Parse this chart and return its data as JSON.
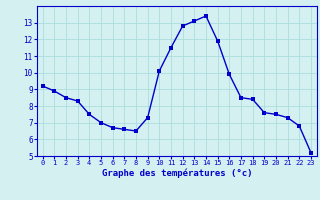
{
  "x": [
    0,
    1,
    2,
    3,
    4,
    5,
    6,
    7,
    8,
    9,
    10,
    11,
    12,
    13,
    14,
    15,
    16,
    17,
    18,
    19,
    20,
    21,
    22,
    23
  ],
  "y": [
    9.2,
    8.9,
    8.5,
    8.3,
    7.5,
    7.0,
    6.7,
    6.6,
    6.5,
    7.3,
    10.1,
    11.5,
    12.8,
    13.1,
    13.4,
    11.9,
    9.9,
    8.5,
    8.4,
    7.6,
    7.5,
    7.3,
    6.8,
    5.2
  ],
  "line_color": "#0000cc",
  "marker": "s",
  "marker_size": 2.2,
  "bg_color": "#d5f0f0",
  "grid_color": "#aadddd",
  "xlabel": "Graphe des températures (°c)",
  "xlabel_color": "#0000cc",
  "tick_color": "#0000cc",
  "axis_color": "#0000cc",
  "ylim": [
    5,
    14
  ],
  "yticks": [
    5,
    6,
    7,
    8,
    9,
    10,
    11,
    12,
    13
  ],
  "xticks": [
    0,
    1,
    2,
    3,
    4,
    5,
    6,
    7,
    8,
    9,
    10,
    11,
    12,
    13,
    14,
    15,
    16,
    17,
    18,
    19,
    20,
    21,
    22,
    23
  ],
  "xlim": [
    -0.5,
    23.5
  ]
}
